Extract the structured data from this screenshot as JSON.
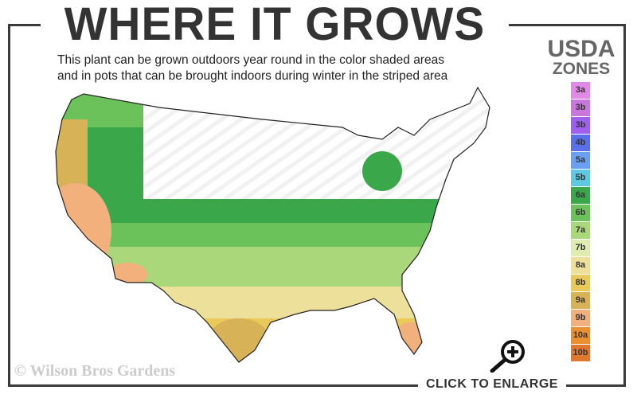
{
  "title": "WHERE IT GROWS",
  "subtitle_line1": "This plant can be grown outdoors year round in the color shaded areas",
  "subtitle_line2": "and in pots that can be brought indoors during winter in the striped area",
  "legend": {
    "title_line1": "USDA",
    "title_line2": "ZONES",
    "zones": [
      {
        "label": "3a",
        "color": "#e08ae6"
      },
      {
        "label": "3b",
        "color": "#c977dc"
      },
      {
        "label": "3b",
        "color": "#a060ee"
      },
      {
        "label": "4b",
        "color": "#5a70e8"
      },
      {
        "label": "5a",
        "color": "#6b9ff0"
      },
      {
        "label": "5b",
        "color": "#5ec8e0"
      },
      {
        "label": "6a",
        "color": "#3aa84a"
      },
      {
        "label": "6b",
        "color": "#6cc25a"
      },
      {
        "label": "7a",
        "color": "#a9d77a"
      },
      {
        "label": "7b",
        "color": "#dfecb2"
      },
      {
        "label": "8a",
        "color": "#ece09a"
      },
      {
        "label": "8b",
        "color": "#e8c95a"
      },
      {
        "label": "9a",
        "color": "#d8b256"
      },
      {
        "label": "9b",
        "color": "#f2b07c"
      },
      {
        "label": "10a",
        "color": "#ea9030"
      },
      {
        "label": "10b",
        "color": "#e07830"
      }
    ]
  },
  "copyright": "© Wilson Bros Gardens",
  "enlarge_label": "CLICK TO ENLARGE",
  "icons": {
    "zoom": "magnifier-plus-icon"
  }
}
